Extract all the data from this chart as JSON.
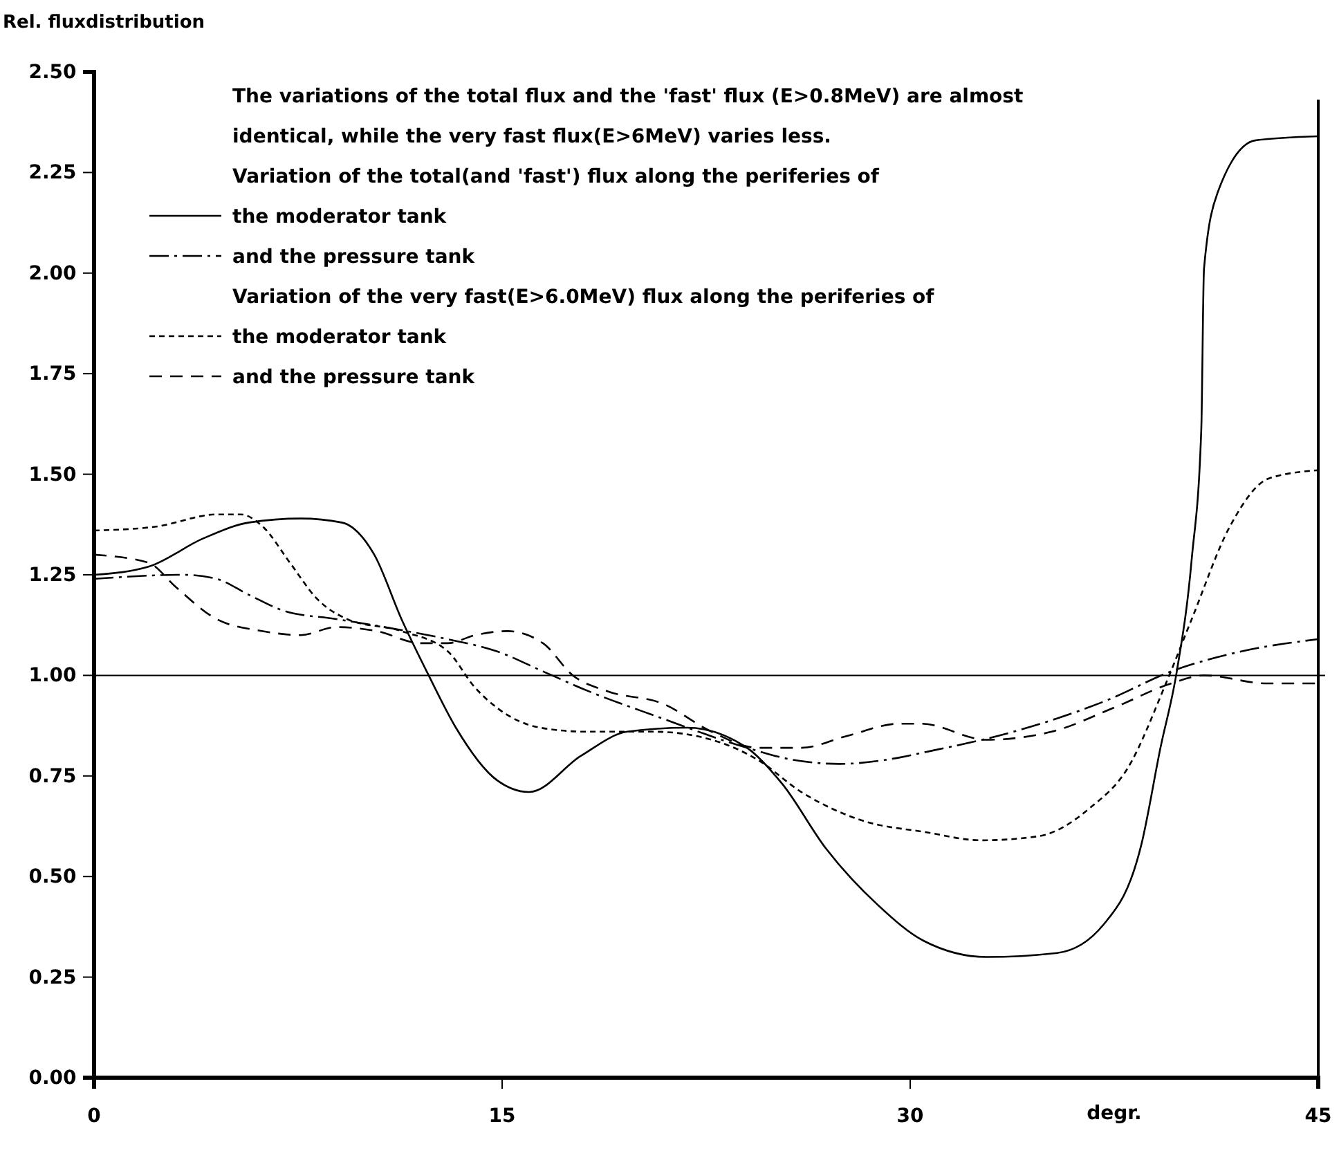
{
  "chart_data": {
    "type": "line",
    "ylabel": "Rel. fluxdistribution",
    "xlabel": "degr.",
    "xlim": [
      0,
      45
    ],
    "xticks": [
      0,
      15,
      30,
      45
    ],
    "ylim": [
      0,
      2.5
    ],
    "yticks": [
      {
        "value": 0,
        "label": "0.00"
      },
      {
        "value": 0.25,
        "label": "0.25"
      },
      {
        "value": 0.5,
        "label": "0.50"
      },
      {
        "value": 0.75,
        "label": "0.75"
      },
      {
        "value": 1,
        "label": "1.00"
      },
      {
        "value": 1.25,
        "label": "1.25"
      },
      {
        "value": 1.5,
        "label": "1.50"
      },
      {
        "value": 1.75,
        "label": "1.75"
      },
      {
        "value": 2,
        "label": "2.00"
      },
      {
        "value": 2.25,
        "label": "2.25"
      },
      {
        "value": 2.5,
        "label": "2.50"
      }
    ],
    "grid": false,
    "legend": "top left",
    "marker": "none",
    "annotations": [
      "The variations of the total flux and the 'fast' flux (E>0.8MeV) are almost identical, while the very fast flux(E>6MeV) varies less.",
      "Variation of the total(and 'fast') flux along the periferies of",
      "Variation of the very fast(E>6.0MeV) flux along the periferies of"
    ],
    "ref_lines": [
      {
        "axis": "y",
        "value": 1,
        "color": "#000000",
        "line_style": "solid"
      }
    ],
    "series": [
      {
        "name": "the moderator tank",
        "color": "#000000",
        "line_style": "solid",
        "x": [
          0,
          2,
          4,
          5.7,
          7.6,
          9.1,
          10.3,
          11.3,
          12.3,
          13.3,
          14.8,
          16,
          17.9,
          19.6,
          21.8,
          24,
          25.3,
          26.9,
          28.8,
          30.5,
          32.8,
          35.4,
          37.1,
          38.5,
          39.2,
          39.8,
          40.35,
          40.7,
          40.8,
          41.3,
          42.7,
          45
        ],
        "values": [
          1.25,
          1.27,
          1.34,
          1.38,
          1.39,
          1.38,
          1.3,
          1.14,
          1,
          0.87,
          0.74,
          0.71,
          0.8,
          0.86,
          0.87,
          0.82,
          0.73,
          0.57,
          0.43,
          0.34,
          0.3,
          0.31,
          0.38,
          0.58,
          0.82,
          1.01,
          1.29,
          1.61,
          2.01,
          2.2,
          2.33,
          2.34
        ]
      },
      {
        "name": "and the pressure tank",
        "color": "#000000",
        "line_style": "dashdot",
        "x": [
          0,
          3.3,
          4.5,
          5.7,
          7,
          8.9,
          11.5,
          13,
          14.8,
          16.5,
          18.2,
          20.6,
          24,
          25.7,
          27.4,
          29.1,
          30.6,
          33.8,
          37.3,
          39.6,
          42.2,
          45
        ],
        "values": [
          1.24,
          1.25,
          1.24,
          1.2,
          1.16,
          1.14,
          1.11,
          1.09,
          1.06,
          1.01,
          0.96,
          0.9,
          0.82,
          0.79,
          0.78,
          0.79,
          0.81,
          0.86,
          0.94,
          1.01,
          1.06,
          1.09
        ]
      },
      {
        "name": "the moderator tank",
        "color": "#000000",
        "line_style": "dotted",
        "x": [
          0,
          2.3,
          4.5,
          5.4,
          6.2,
          7.2,
          8.2,
          9.3,
          11.3,
          13,
          14,
          14.8,
          16.4,
          18.1,
          20.6,
          22.7,
          24.4,
          26,
          28.2,
          30.6,
          32.6,
          34.7,
          36.6,
          38,
          39.4,
          40.35,
          41.75,
          43.2,
          45
        ],
        "values": [
          1.36,
          1.37,
          1.4,
          1.4,
          1.37,
          1.28,
          1.19,
          1.14,
          1.11,
          1.06,
          0.97,
          0.92,
          0.87,
          0.86,
          0.86,
          0.84,
          0.79,
          0.71,
          0.64,
          0.61,
          0.59,
          0.6,
          0.67,
          0.77,
          0.98,
          1.14,
          1.37,
          1.49,
          1.51
        ]
      },
      {
        "name": "and the pressure tank",
        "color": "#000000",
        "line_style": "dashed",
        "x": [
          0,
          2,
          3,
          4.5,
          6.2,
          7.6,
          8.9,
          10.4,
          12,
          13,
          14,
          15.2,
          16.5,
          17.6,
          18.9,
          20.9,
          22.7,
          24.4,
          26,
          27.7,
          29.6,
          30.4,
          32.8,
          35.2,
          37.5,
          39.6,
          40.8,
          43.1,
          45
        ],
        "values": [
          1.3,
          1.28,
          1.22,
          1.14,
          1.11,
          1.1,
          1.12,
          1.11,
          1.08,
          1.08,
          1.1,
          1.11,
          1.08,
          1,
          0.96,
          0.93,
          0.86,
          0.82,
          0.82,
          0.85,
          0.88,
          0.88,
          0.84,
          0.86,
          0.92,
          0.98,
          1,
          0.98,
          0.98
        ]
      }
    ]
  }
}
